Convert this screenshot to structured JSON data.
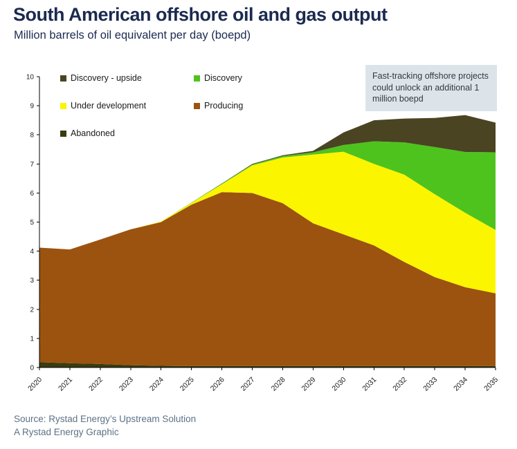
{
  "header": {
    "title": "South American offshore oil and gas output",
    "subtitle": "Million barrels of oil equivalent per day (boepd)"
  },
  "annotation": {
    "text": "Fast-tracking offshore projects could unlock an additional 1 million boepd"
  },
  "footer": {
    "source_line1": "Source: Rystad Energy’s Upstream Solution",
    "source_line2": "A Rystad Energy Graphic"
  },
  "legend": {
    "items": [
      {
        "label": "Discovery - upside",
        "color": "#4a4423"
      },
      {
        "label": "Discovery",
        "color": "#4fc31d"
      },
      {
        "label": "Under development",
        "color": "#fbf500"
      },
      {
        "label": "Producing",
        "color": "#9c530f"
      },
      {
        "label": "Abandoned",
        "color": "#3a3c10"
      }
    ]
  },
  "chart_data": {
    "type": "area",
    "stacked": true,
    "title": "South American offshore oil and gas output",
    "xlabel": "",
    "ylabel": "Million barrels of oil equivalent per day (boepd)",
    "ylim": [
      0,
      10
    ],
    "yticks": [
      0,
      1,
      2,
      3,
      4,
      5,
      6,
      7,
      8,
      9,
      10
    ],
    "grid": false,
    "legend_position": "top-left-inside",
    "x": [
      2020,
      2021,
      2022,
      2023,
      2024,
      2025,
      2026,
      2027,
      2028,
      2029,
      2030,
      2031,
      2032,
      2033,
      2034,
      2035
    ],
    "series": [
      {
        "key": "abandoned",
        "name": "Abandoned",
        "color": "#3a3c10",
        "values": [
          0.18,
          0.15,
          0.12,
          0.08,
          0.06,
          0.05,
          0.05,
          0.05,
          0.05,
          0.05,
          0.05,
          0.05,
          0.05,
          0.05,
          0.05,
          0.05
        ]
      },
      {
        "key": "producing",
        "name": "Producing",
        "color": "#9c530f",
        "values": [
          3.94,
          3.91,
          4.28,
          4.67,
          4.94,
          5.55,
          5.98,
          5.95,
          5.6,
          4.91,
          4.53,
          4.15,
          3.58,
          3.06,
          2.71,
          2.5
        ]
      },
      {
        "key": "under-development",
        "name": "Under development",
        "color": "#fbf500",
        "values": [
          0,
          0,
          0,
          0,
          0.02,
          0.06,
          0.27,
          0.95,
          1.57,
          2.36,
          2.84,
          2.8,
          3.0,
          2.85,
          2.56,
          2.18
        ]
      },
      {
        "key": "discovery",
        "name": "Discovery",
        "color": "#4fc31d",
        "values": [
          0,
          0,
          0,
          0,
          0,
          0.01,
          0.02,
          0.03,
          0.05,
          0.08,
          0.23,
          0.78,
          1.11,
          1.62,
          2.09,
          2.67
        ]
      },
      {
        "key": "discovery-upside",
        "name": "Discovery - upside",
        "color": "#4a4423",
        "values": [
          0,
          0,
          0,
          0,
          0,
          0,
          0.01,
          0.02,
          0.03,
          0.05,
          0.43,
          0.72,
          0.82,
          1.0,
          1.27,
          1.02
        ]
      }
    ]
  }
}
